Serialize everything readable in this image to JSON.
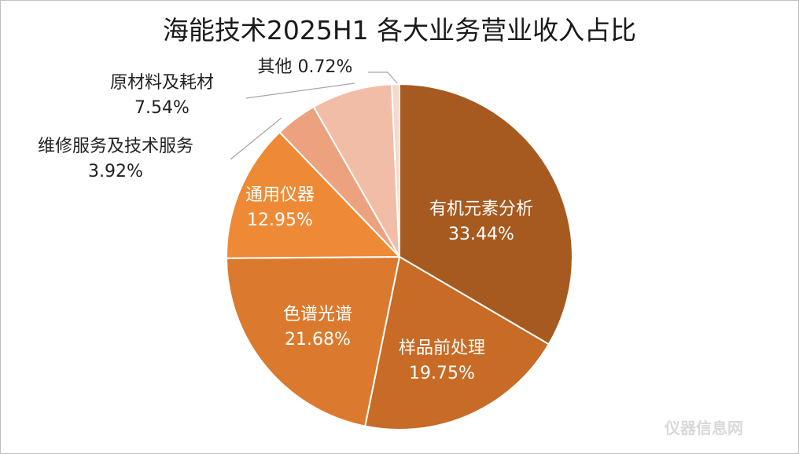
{
  "chart_data": {
    "type": "pie",
    "title": "海能技术2025H1 各大业务营业收入占比",
    "slices": [
      {
        "name": "有机元素分析",
        "value": 33.44,
        "label_value": "33.44%",
        "color": "#A65A1F"
      },
      {
        "name": "样品前处理",
        "value": 19.75,
        "label_value": "19.75%",
        "color": "#C76B26"
      },
      {
        "name": "色谱光谱",
        "value": 21.68,
        "label_value": "21.68%",
        "color": "#DB7A2E"
      },
      {
        "name": "通用仪器",
        "value": 12.95,
        "label_value": "12.95%",
        "color": "#EE8A35"
      },
      {
        "name": "维修服务及技术服务",
        "value": 3.92,
        "label_value": "3.92%",
        "color": "#ECA27F"
      },
      {
        "name": "原材料及耗材",
        "value": 7.54,
        "label_value": "7.54%",
        "color": "#F2BDA6"
      },
      {
        "name": "其他",
        "value": 0.72,
        "label_value": "0.72%",
        "color": "#F6D8CC"
      }
    ],
    "legend": "none"
  },
  "watermark": "仪器信息网"
}
